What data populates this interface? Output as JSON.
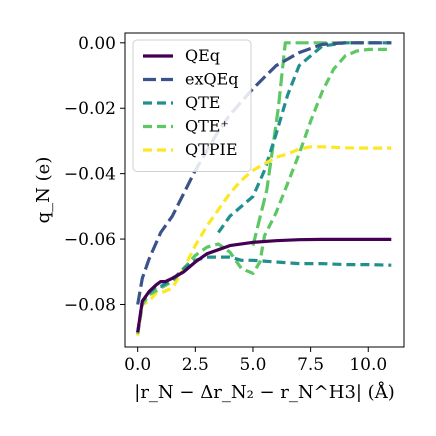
{
  "chart_data": {
    "type": "line",
    "xlabel": "|r_N − Δr_N₂ − r_N^H3| (Å)",
    "ylabel": "q_N (e)",
    "xlim": [
      -0.55,
      11.55
    ],
    "ylim": [
      -0.093,
      0.003
    ],
    "xticks": [
      0.0,
      2.5,
      5.0,
      7.5,
      10.0
    ],
    "xtick_labels": [
      "0.0",
      "2.5",
      "5.0",
      "7.5",
      "10.0"
    ],
    "yticks": [
      0.0,
      -0.02,
      -0.04,
      -0.06,
      -0.08
    ],
    "ytick_labels": [
      "0.00",
      "−0.02",
      "−0.04",
      "−0.06",
      "−0.08"
    ],
    "grid": false,
    "legend_position": "top-left",
    "series": [
      {
        "name": "QEq",
        "color": "#440154",
        "dash": "solid",
        "x": [
          0.0,
          0.2,
          0.5,
          0.8,
          1.0,
          1.2,
          1.5,
          2.0,
          2.5,
          3.0,
          4.0,
          5.0,
          6.0,
          7.0,
          8.0,
          9.0,
          10.0,
          11.0
        ],
        "y": [
          -0.0885,
          -0.079,
          -0.076,
          -0.074,
          -0.073,
          -0.073,
          -0.072,
          -0.07,
          -0.067,
          -0.0645,
          -0.062,
          -0.061,
          -0.0605,
          -0.0602,
          -0.0601,
          -0.0601,
          -0.0601,
          -0.0601
        ]
      },
      {
        "name": "exQEq",
        "color": "#3b528b",
        "dash": "longdash",
        "x": [
          0.0,
          0.2,
          0.5,
          1.0,
          1.5,
          2.0,
          2.5,
          3.0,
          3.5,
          4.0,
          5.0,
          6.0,
          7.0,
          8.0,
          9.0,
          10.0,
          11.0
        ],
        "y": [
          -0.08,
          -0.072,
          -0.066,
          -0.058,
          -0.053,
          -0.046,
          -0.039,
          -0.033,
          -0.027,
          -0.022,
          -0.014,
          -0.007,
          -0.003,
          -0.0005,
          0.0,
          0.0,
          0.0
        ]
      },
      {
        "name": "QTE",
        "color": "#21908d",
        "dash": "dashed",
        "x": [
          0.0,
          0.2,
          0.5,
          0.8,
          1.0,
          1.5,
          2.0,
          2.5,
          3.0,
          3.5,
          4.0,
          4.5,
          5.0,
          6.0,
          7.0,
          8.0,
          9.0,
          10.0,
          11.0
        ],
        "y": [
          -0.0885,
          -0.079,
          -0.0765,
          -0.0745,
          -0.0745,
          -0.0725,
          -0.069,
          -0.0665,
          -0.0655,
          -0.0655,
          -0.0655,
          -0.0665,
          -0.0665,
          -0.067,
          -0.0675,
          -0.0675,
          -0.0678,
          -0.0678,
          -0.068
        ]
      },
      {
        "name": "QTE⁺",
        "color": "#5dc863",
        "dash": "dashed",
        "x": [
          0.0,
          0.2,
          0.5,
          1.0,
          1.5,
          2.0,
          2.5,
          3.0,
          3.5,
          4.0,
          4.5,
          5.0,
          5.3,
          5.5,
          6.0,
          6.5,
          7.0,
          7.5,
          8.0,
          8.5,
          9.0,
          9.5,
          10.0,
          11.0
        ],
        "y": [
          -0.089,
          -0.08,
          -0.077,
          -0.075,
          -0.073,
          -0.069,
          -0.065,
          -0.0625,
          -0.0615,
          -0.064,
          -0.069,
          -0.0705,
          -0.067,
          -0.059,
          -0.052,
          -0.043,
          -0.034,
          -0.024,
          -0.015,
          -0.008,
          -0.004,
          -0.0025,
          -0.002,
          -0.002
        ]
      },
      {
        "name": "QTPIE",
        "color": "#fde725",
        "dash": "dashed",
        "x": [
          0.0,
          0.2,
          0.5,
          0.8,
          1.0,
          1.5,
          2.0,
          2.5,
          3.0,
          3.5,
          4.0,
          4.5,
          5.0,
          5.5,
          6.0,
          6.5,
          7.0,
          7.5,
          8.0,
          9.0,
          10.0,
          11.0
        ],
        "y": [
          -0.0895,
          -0.08,
          -0.079,
          -0.0765,
          -0.0765,
          -0.075,
          -0.069,
          -0.062,
          -0.056,
          -0.051,
          -0.046,
          -0.042,
          -0.039,
          -0.037,
          -0.035,
          -0.034,
          -0.0325,
          -0.0318,
          -0.0318,
          -0.0321,
          -0.0322,
          -0.0322
        ]
      }
    ],
    "overlay_series": [
      {
        "ref": "QTE⁺ (step branch)",
        "color": "#5dc863",
        "dash": "longdash",
        "x": [
          5.0,
          5.6,
          6.1,
          6.4,
          6.6,
          7.0,
          8.0,
          9.0,
          10.0,
          11.0
        ],
        "y": [
          -0.062,
          -0.045,
          -0.02,
          0.0,
          0.0,
          0.0,
          0.0,
          0.0,
          0.0,
          0.0
        ]
      },
      {
        "ref": "QTE (upper branch)",
        "color": "#21908d",
        "dash": "dashed",
        "x": [
          3.5,
          4.0,
          4.5,
          5.0,
          5.5,
          6.0,
          6.5,
          7.0,
          8.0,
          9.0,
          10.0,
          11.0
        ],
        "y": [
          -0.058,
          -0.053,
          -0.05,
          -0.047,
          -0.039,
          -0.028,
          -0.016,
          -0.007,
          -0.001,
          0.0,
          0.0,
          0.0
        ]
      }
    ]
  }
}
